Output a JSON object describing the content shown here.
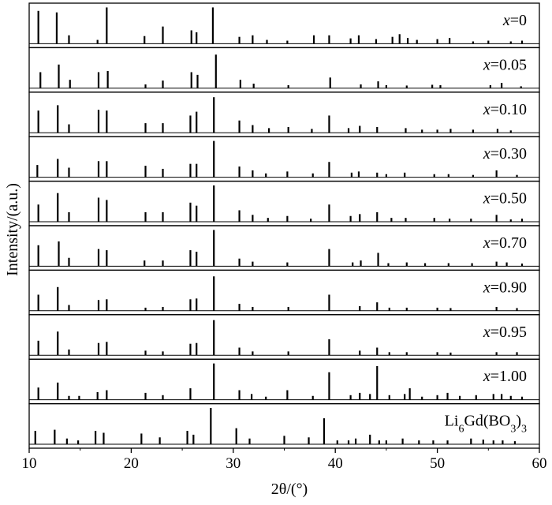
{
  "chart_data": {
    "type": "line",
    "xlabel": "2θ/(°)",
    "ylabel": "Intensity/(a.u.)",
    "xlim": [
      10,
      60
    ],
    "xticks": [
      10,
      20,
      30,
      40,
      50,
      60
    ],
    "x_tick_labels": [
      "10",
      "20",
      "30",
      "40",
      "50",
      "60"
    ],
    "grid": false,
    "legend": "none",
    "series": [
      {
        "label_prefix": "x",
        "label_value": "=0",
        "peaks": [
          [
            10.9,
            0.86
          ],
          [
            12.7,
            0.82
          ],
          [
            13.9,
            0.22
          ],
          [
            16.7,
            0.1
          ],
          [
            17.6,
            0.95
          ],
          [
            21.3,
            0.2
          ],
          [
            23.1,
            0.45
          ],
          [
            25.9,
            0.35
          ],
          [
            26.4,
            0.3
          ],
          [
            28.0,
            0.95
          ],
          [
            30.6,
            0.18
          ],
          [
            31.9,
            0.22
          ],
          [
            33.3,
            0.1
          ],
          [
            35.3,
            0.08
          ],
          [
            37.9,
            0.22
          ],
          [
            39.4,
            0.22
          ],
          [
            41.5,
            0.14
          ],
          [
            42.3,
            0.22
          ],
          [
            44.0,
            0.12
          ],
          [
            45.6,
            0.18
          ],
          [
            46.3,
            0.25
          ],
          [
            47.1,
            0.15
          ],
          [
            48.0,
            0.1
          ],
          [
            50.0,
            0.12
          ],
          [
            51.2,
            0.15
          ],
          [
            53.5,
            0.06
          ],
          [
            55.0,
            0.08
          ],
          [
            57.2,
            0.06
          ],
          [
            58.3,
            0.08
          ]
        ]
      },
      {
        "label_prefix": "x",
        "label_value": "=0.05",
        "peaks": [
          [
            11.1,
            0.42
          ],
          [
            12.9,
            0.62
          ],
          [
            14.0,
            0.22
          ],
          [
            16.8,
            0.42
          ],
          [
            17.7,
            0.45
          ],
          [
            21.4,
            0.1
          ],
          [
            23.1,
            0.2
          ],
          [
            25.9,
            0.42
          ],
          [
            26.5,
            0.35
          ],
          [
            28.3,
            0.88
          ],
          [
            30.7,
            0.22
          ],
          [
            32.0,
            0.12
          ],
          [
            35.4,
            0.08
          ],
          [
            39.5,
            0.28
          ],
          [
            42.5,
            0.1
          ],
          [
            44.2,
            0.18
          ],
          [
            45.0,
            0.08
          ],
          [
            47.0,
            0.07
          ],
          [
            49.5,
            0.09
          ],
          [
            50.3,
            0.08
          ],
          [
            55.2,
            0.08
          ],
          [
            56.3,
            0.14
          ],
          [
            58.2,
            0.05
          ]
        ]
      },
      {
        "label_prefix": "x",
        "label_value": "=0.10",
        "peaks": [
          [
            10.9,
            0.58
          ],
          [
            12.8,
            0.72
          ],
          [
            13.9,
            0.22
          ],
          [
            16.8,
            0.6
          ],
          [
            17.6,
            0.58
          ],
          [
            21.4,
            0.25
          ],
          [
            23.1,
            0.25
          ],
          [
            25.8,
            0.45
          ],
          [
            26.4,
            0.55
          ],
          [
            28.1,
            0.93
          ],
          [
            30.6,
            0.32
          ],
          [
            31.9,
            0.2
          ],
          [
            33.5,
            0.12
          ],
          [
            35.4,
            0.15
          ],
          [
            37.7,
            0.1
          ],
          [
            39.4,
            0.45
          ],
          [
            41.3,
            0.12
          ],
          [
            42.4,
            0.18
          ],
          [
            44.1,
            0.15
          ],
          [
            46.9,
            0.12
          ],
          [
            48.5,
            0.08
          ],
          [
            50.0,
            0.08
          ],
          [
            51.3,
            0.1
          ],
          [
            53.5,
            0.08
          ],
          [
            55.9,
            0.1
          ],
          [
            57.2,
            0.06
          ]
        ]
      },
      {
        "label_prefix": "x",
        "label_value": "=0.30",
        "peaks": [
          [
            10.8,
            0.32
          ],
          [
            12.8,
            0.48
          ],
          [
            13.9,
            0.25
          ],
          [
            16.8,
            0.42
          ],
          [
            17.6,
            0.42
          ],
          [
            21.4,
            0.3
          ],
          [
            23.1,
            0.22
          ],
          [
            25.8,
            0.35
          ],
          [
            26.4,
            0.35
          ],
          [
            28.1,
            0.95
          ],
          [
            30.6,
            0.28
          ],
          [
            31.9,
            0.18
          ],
          [
            33.2,
            0.1
          ],
          [
            35.3,
            0.15
          ],
          [
            37.8,
            0.1
          ],
          [
            39.4,
            0.4
          ],
          [
            41.6,
            0.12
          ],
          [
            42.3,
            0.15
          ],
          [
            44.1,
            0.12
          ],
          [
            45.0,
            0.08
          ],
          [
            46.8,
            0.12
          ],
          [
            49.7,
            0.08
          ],
          [
            51.1,
            0.08
          ],
          [
            53.5,
            0.06
          ],
          [
            55.8,
            0.18
          ],
          [
            57.8,
            0.06
          ]
        ]
      },
      {
        "label_prefix": "x",
        "label_value": "=0.50",
        "peaks": [
          [
            10.9,
            0.45
          ],
          [
            12.8,
            0.75
          ],
          [
            13.9,
            0.25
          ],
          [
            16.8,
            0.63
          ],
          [
            17.6,
            0.57
          ],
          [
            21.4,
            0.25
          ],
          [
            23.1,
            0.25
          ],
          [
            25.8,
            0.5
          ],
          [
            26.4,
            0.42
          ],
          [
            28.1,
            0.95
          ],
          [
            30.6,
            0.3
          ],
          [
            31.9,
            0.18
          ],
          [
            33.4,
            0.1
          ],
          [
            35.3,
            0.15
          ],
          [
            37.6,
            0.08
          ],
          [
            39.4,
            0.45
          ],
          [
            41.5,
            0.15
          ],
          [
            42.4,
            0.2
          ],
          [
            44.1,
            0.25
          ],
          [
            45.5,
            0.1
          ],
          [
            46.9,
            0.1
          ],
          [
            49.7,
            0.1
          ],
          [
            51.2,
            0.08
          ],
          [
            53.3,
            0.08
          ],
          [
            55.8,
            0.18
          ],
          [
            57.2,
            0.06
          ],
          [
            58.3,
            0.08
          ]
        ]
      },
      {
        "label_prefix": "x",
        "label_value": "=0.70",
        "peaks": [
          [
            10.9,
            0.55
          ],
          [
            12.9,
            0.65
          ],
          [
            13.9,
            0.22
          ],
          [
            16.8,
            0.45
          ],
          [
            17.6,
            0.42
          ],
          [
            21.3,
            0.15
          ],
          [
            23.1,
            0.15
          ],
          [
            25.8,
            0.42
          ],
          [
            26.4,
            0.38
          ],
          [
            28.1,
            0.95
          ],
          [
            30.6,
            0.2
          ],
          [
            31.9,
            0.12
          ],
          [
            35.3,
            0.1
          ],
          [
            39.4,
            0.45
          ],
          [
            41.7,
            0.1
          ],
          [
            42.5,
            0.15
          ],
          [
            44.2,
            0.35
          ],
          [
            45.2,
            0.08
          ],
          [
            47.0,
            0.1
          ],
          [
            48.8,
            0.08
          ],
          [
            51.1,
            0.08
          ],
          [
            53.4,
            0.08
          ],
          [
            55.8,
            0.12
          ],
          [
            56.8,
            0.1
          ],
          [
            58.3,
            0.07
          ]
        ]
      },
      {
        "label_prefix": "x",
        "label_value": "=0.90",
        "peaks": [
          [
            10.9,
            0.42
          ],
          [
            12.8,
            0.62
          ],
          [
            13.9,
            0.15
          ],
          [
            16.8,
            0.28
          ],
          [
            17.6,
            0.3
          ],
          [
            21.4,
            0.08
          ],
          [
            23.1,
            0.1
          ],
          [
            25.8,
            0.3
          ],
          [
            26.4,
            0.32
          ],
          [
            28.1,
            0.9
          ],
          [
            30.6,
            0.18
          ],
          [
            31.9,
            0.1
          ],
          [
            35.4,
            0.1
          ],
          [
            39.4,
            0.42
          ],
          [
            42.4,
            0.12
          ],
          [
            44.1,
            0.22
          ],
          [
            45.3,
            0.08
          ],
          [
            47.0,
            0.08
          ],
          [
            50.0,
            0.08
          ],
          [
            51.3,
            0.07
          ],
          [
            55.8,
            0.1
          ],
          [
            57.8,
            0.07
          ]
        ]
      },
      {
        "label_prefix": "x",
        "label_value": "=0.95",
        "peaks": [
          [
            10.9,
            0.38
          ],
          [
            12.8,
            0.62
          ],
          [
            13.9,
            0.15
          ],
          [
            16.8,
            0.32
          ],
          [
            17.6,
            0.35
          ],
          [
            21.4,
            0.12
          ],
          [
            23.1,
            0.1
          ],
          [
            25.8,
            0.3
          ],
          [
            26.4,
            0.32
          ],
          [
            28.1,
            0.92
          ],
          [
            30.6,
            0.2
          ],
          [
            31.9,
            0.1
          ],
          [
            35.4,
            0.1
          ],
          [
            39.4,
            0.42
          ],
          [
            42.4,
            0.12
          ],
          [
            44.1,
            0.2
          ],
          [
            45.3,
            0.08
          ],
          [
            47.0,
            0.08
          ],
          [
            50.0,
            0.08
          ],
          [
            51.3,
            0.07
          ],
          [
            55.8,
            0.08
          ],
          [
            57.8,
            0.08
          ]
        ]
      },
      {
        "label_prefix": "x",
        "label_value": "=1.00",
        "peaks": [
          [
            10.9,
            0.32
          ],
          [
            12.8,
            0.45
          ],
          [
            13.9,
            0.1
          ],
          [
            14.9,
            0.1
          ],
          [
            16.7,
            0.2
          ],
          [
            17.6,
            0.25
          ],
          [
            21.4,
            0.18
          ],
          [
            23.1,
            0.12
          ],
          [
            25.8,
            0.3
          ],
          [
            28.1,
            0.95
          ],
          [
            30.6,
            0.25
          ],
          [
            31.8,
            0.15
          ],
          [
            33.2,
            0.08
          ],
          [
            35.3,
            0.25
          ],
          [
            37.8,
            0.1
          ],
          [
            39.4,
            0.72
          ],
          [
            41.5,
            0.12
          ],
          [
            42.4,
            0.18
          ],
          [
            43.4,
            0.15
          ],
          [
            44.1,
            0.88
          ],
          [
            45.3,
            0.12
          ],
          [
            46.8,
            0.15
          ],
          [
            47.3,
            0.3
          ],
          [
            48.5,
            0.08
          ],
          [
            50.0,
            0.12
          ],
          [
            51.0,
            0.18
          ],
          [
            52.2,
            0.1
          ],
          [
            53.8,
            0.12
          ],
          [
            55.5,
            0.15
          ],
          [
            56.3,
            0.15
          ],
          [
            57.2,
            0.1
          ],
          [
            58.3,
            0.08
          ]
        ]
      },
      {
        "label_prefix": "Li",
        "label_value": "Li6Gd(BO3)3",
        "label_sub": [
          "6",
          "3"
        ],
        "label_mid": "Gd(BO",
        "label_end": ")",
        "peaks": [
          [
            10.6,
            0.35
          ],
          [
            12.5,
            0.38
          ],
          [
            13.7,
            0.15
          ],
          [
            14.8,
            0.1
          ],
          [
            16.5,
            0.35
          ],
          [
            17.3,
            0.3
          ],
          [
            21.0,
            0.28
          ],
          [
            22.8,
            0.18
          ],
          [
            25.5,
            0.35
          ],
          [
            26.1,
            0.25
          ],
          [
            27.8,
            0.95
          ],
          [
            30.3,
            0.42
          ],
          [
            31.6,
            0.15
          ],
          [
            35.0,
            0.22
          ],
          [
            37.4,
            0.18
          ],
          [
            38.9,
            0.68
          ],
          [
            40.2,
            0.1
          ],
          [
            41.3,
            0.1
          ],
          [
            42.0,
            0.15
          ],
          [
            43.4,
            0.25
          ],
          [
            44.3,
            0.1
          ],
          [
            45.0,
            0.1
          ],
          [
            46.6,
            0.15
          ],
          [
            48.2,
            0.1
          ],
          [
            49.6,
            0.1
          ],
          [
            51.0,
            0.1
          ],
          [
            53.3,
            0.15
          ],
          [
            54.5,
            0.12
          ],
          [
            55.5,
            0.1
          ],
          [
            56.4,
            0.1
          ],
          [
            57.6,
            0.08
          ]
        ]
      }
    ]
  }
}
